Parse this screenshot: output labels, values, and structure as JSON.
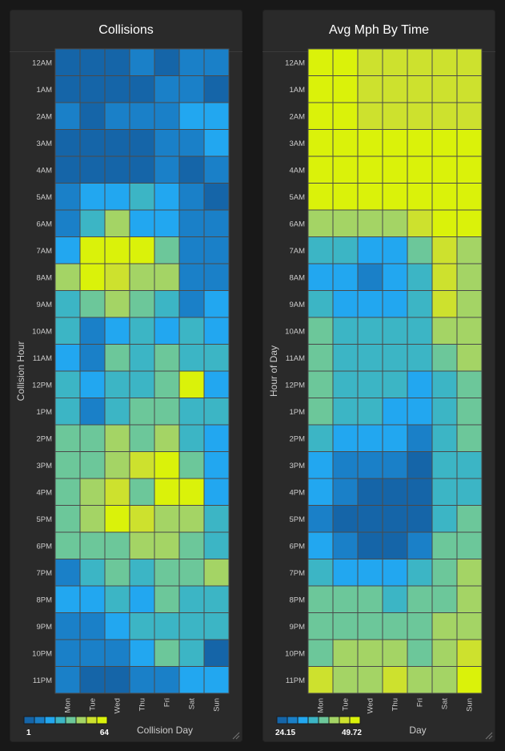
{
  "colors": {
    "scale": [
      "#1565a8",
      "#1a80c8",
      "#22a7f0",
      "#3cb5c5",
      "#6cc79a",
      "#a4d465",
      "#cde12e",
      "#daf20a"
    ],
    "cell_border": "#4a4a4a",
    "label": "#cccccc",
    "panel_bg": "#2a2a2a"
  },
  "chart_data": [
    {
      "type": "heatmap",
      "title": "Collisions",
      "xlabel": "Collision Day",
      "ylabel": "Collision Hour",
      "x_categories": [
        "Mon",
        "Tue",
        "Wed",
        "Thu",
        "Fri",
        "Sat",
        "Sun"
      ],
      "y_categories": [
        "12AM",
        "1AM",
        "2AM",
        "3AM",
        "4AM",
        "5AM",
        "6AM",
        "7AM",
        "8AM",
        "9AM",
        "10AM",
        "11AM",
        "12PM",
        "1PM",
        "2PM",
        "3PM",
        "4PM",
        "5PM",
        "6PM",
        "7PM",
        "8PM",
        "9PM",
        "10PM",
        "11PM"
      ],
      "color_range": [
        1,
        64
      ],
      "legend_labels": [
        "1",
        "64"
      ],
      "values": [
        [
          5,
          5,
          5,
          14,
          1,
          14,
          14
        ],
        [
          5,
          5,
          5,
          5,
          14,
          14,
          5
        ],
        [
          14,
          5,
          14,
          14,
          14,
          23,
          23
        ],
        [
          5,
          5,
          5,
          5,
          14,
          14,
          23
        ],
        [
          5,
          5,
          5,
          5,
          14,
          5,
          14
        ],
        [
          14,
          23,
          23,
          32,
          23,
          14,
          1
        ],
        [
          14,
          32,
          50,
          23,
          23,
          14,
          14
        ],
        [
          23,
          60,
          60,
          60,
          41,
          14,
          14
        ],
        [
          50,
          60,
          55,
          50,
          50,
          14,
          14
        ],
        [
          32,
          41,
          50,
          41,
          32,
          14,
          23
        ],
        [
          32,
          14,
          23,
          32,
          23,
          32,
          23
        ],
        [
          23,
          14,
          41,
          32,
          41,
          32,
          32
        ],
        [
          32,
          23,
          32,
          32,
          41,
          60,
          23
        ],
        [
          32,
          14,
          32,
          41,
          41,
          32,
          32
        ],
        [
          41,
          41,
          50,
          41,
          50,
          32,
          23
        ],
        [
          41,
          41,
          50,
          55,
          64,
          41,
          23
        ],
        [
          41,
          50,
          55,
          41,
          60,
          60,
          23
        ],
        [
          41,
          50,
          60,
          55,
          50,
          50,
          32
        ],
        [
          41,
          41,
          41,
          50,
          50,
          41,
          32
        ],
        [
          14,
          32,
          41,
          32,
          41,
          41,
          50
        ],
        [
          23,
          23,
          32,
          23,
          41,
          32,
          32
        ],
        [
          14,
          14,
          23,
          32,
          32,
          32,
          32
        ],
        [
          14,
          14,
          14,
          23,
          41,
          32,
          5
        ],
        [
          14,
          5,
          5,
          14,
          14,
          23,
          23
        ]
      ]
    },
    {
      "type": "heatmap",
      "title": "Avg Mph By Time",
      "xlabel": "Day",
      "ylabel": "Hour of Day",
      "x_categories": [
        "Mon",
        "Tue",
        "Wed",
        "Thu",
        "Fri",
        "Sat",
        "Sun"
      ],
      "y_categories": [
        "12AM",
        "1AM",
        "2AM",
        "3AM",
        "4AM",
        "5AM",
        "6AM",
        "7AM",
        "8AM",
        "9AM",
        "10AM",
        "11AM",
        "12PM",
        "1PM",
        "2PM",
        "3PM",
        "4PM",
        "5PM",
        "6PM",
        "7PM",
        "8PM",
        "9PM",
        "10PM",
        "11PM"
      ],
      "color_range": [
        24.15,
        49.72
      ],
      "legend_labels": [
        "24.15",
        "49.72"
      ],
      "values": [
        [
          48.5,
          48.5,
          47.5,
          47.5,
          47.5,
          47.5,
          47.5
        ],
        [
          48.5,
          48.5,
          47.5,
          47.5,
          47.5,
          47.5,
          47.5
        ],
        [
          48.5,
          48.5,
          47.5,
          47.5,
          47.5,
          47.5,
          47.5
        ],
        [
          49.5,
          49.5,
          48.5,
          48.5,
          48.5,
          48.5,
          48.5
        ],
        [
          49.5,
          49.5,
          49.5,
          49.5,
          49.5,
          49.5,
          49.5
        ],
        [
          48.5,
          48.5,
          48.5,
          48.5,
          48.5,
          48.5,
          49.5
        ],
        [
          43.5,
          43.5,
          43.5,
          43.5,
          46.5,
          48.5,
          48.5
        ],
        [
          34.0,
          34.0,
          31.0,
          31.0,
          38.0,
          44.5,
          43.0
        ],
        [
          31.0,
          31.0,
          27.5,
          31.0,
          34.0,
          46.5,
          43.0
        ],
        [
          34.0,
          31.0,
          31.0,
          31.0,
          34.0,
          46.5,
          43.0
        ],
        [
          38.0,
          34.0,
          34.0,
          34.0,
          34.0,
          43.0,
          43.0
        ],
        [
          38.0,
          34.0,
          34.0,
          34.0,
          34.0,
          38.0,
          43.0
        ],
        [
          38.0,
          34.0,
          34.0,
          34.0,
          31.0,
          34.0,
          38.0
        ],
        [
          38.0,
          34.0,
          34.0,
          31.0,
          31.0,
          34.0,
          38.0
        ],
        [
          34.0,
          31.0,
          31.0,
          31.0,
          27.5,
          34.0,
          38.0
        ],
        [
          31.0,
          27.5,
          27.5,
          27.5,
          24.5,
          34.0,
          34.0
        ],
        [
          31.0,
          27.5,
          24.5,
          24.5,
          24.5,
          34.0,
          34.0
        ],
        [
          27.5,
          24.5,
          24.5,
          24.5,
          24.5,
          34.0,
          38.0
        ],
        [
          31.0,
          27.5,
          24.5,
          24.5,
          27.5,
          38.0,
          38.0
        ],
        [
          34.0,
          31.0,
          31.0,
          31.0,
          34.0,
          38.0,
          43.0
        ],
        [
          38.0,
          38.0,
          38.0,
          34.0,
          38.0,
          38.0,
          43.0
        ],
        [
          38.0,
          38.0,
          38.0,
          38.0,
          38.0,
          43.0,
          43.0
        ],
        [
          38.0,
          43.0,
          43.0,
          43.0,
          38.0,
          43.0,
          46.5
        ],
        [
          46.5,
          43.0,
          43.0,
          46.5,
          43.0,
          43.0,
          48.5
        ]
      ]
    }
  ]
}
